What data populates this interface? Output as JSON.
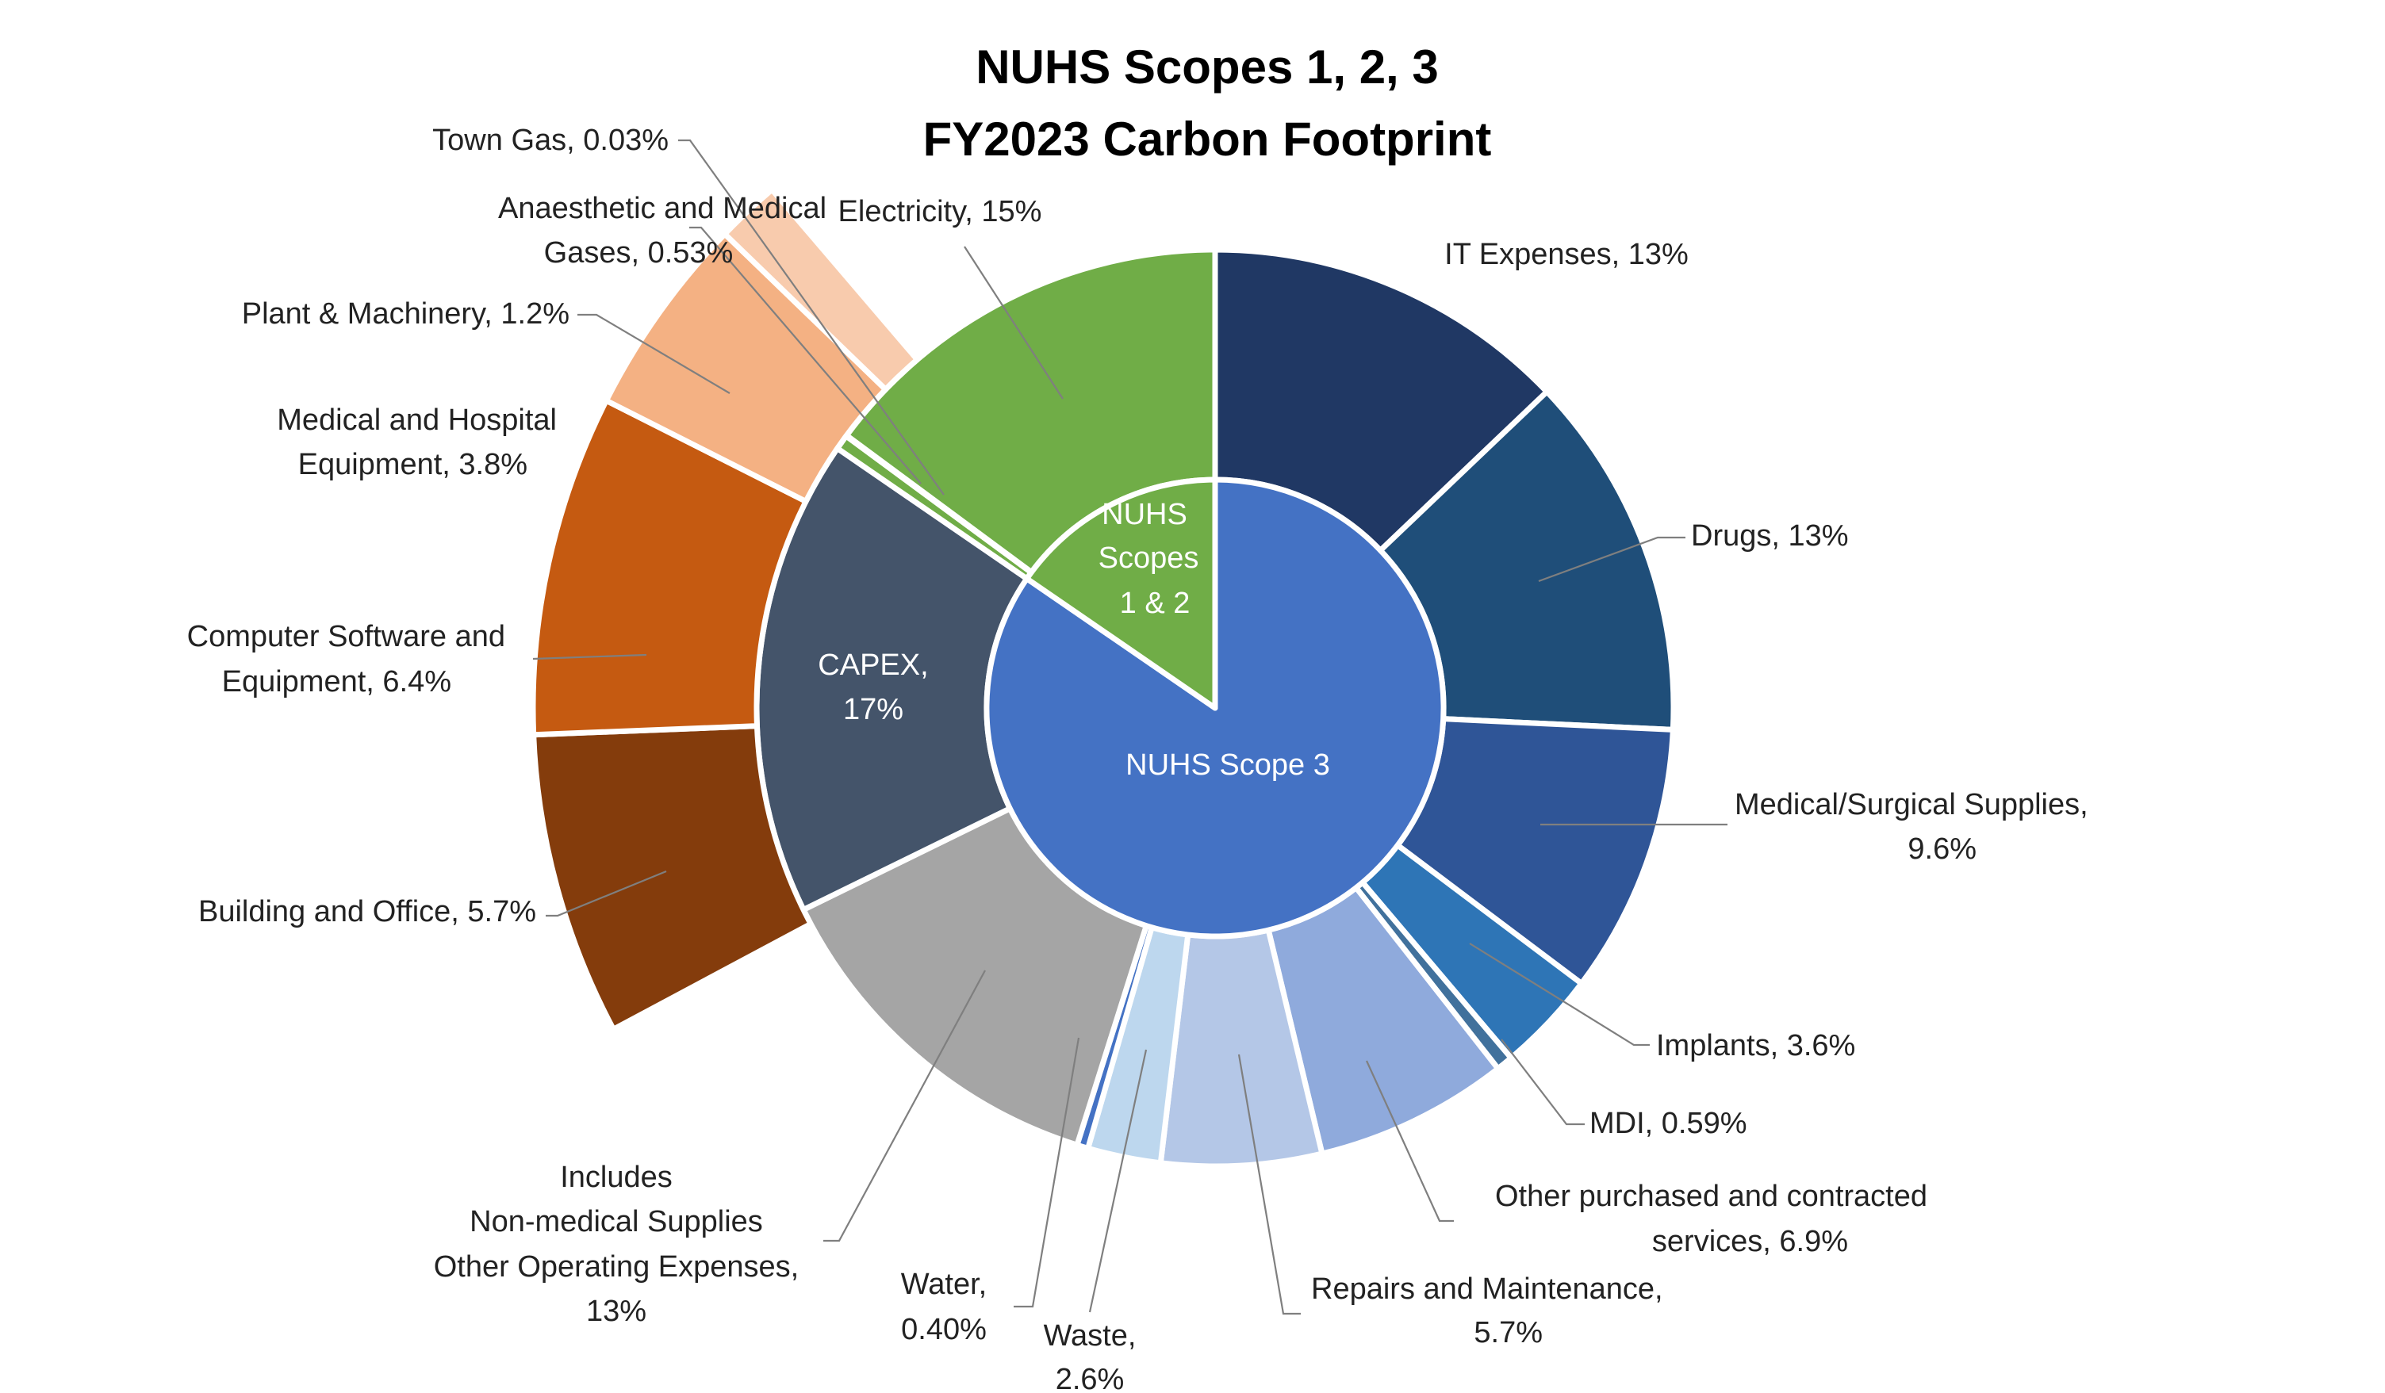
{
  "chart_data": {
    "type": "pie",
    "subtype": "sunburst",
    "title_lines": [
      "NUHS Scopes 1, 2, 3",
      "FY2023 Carbon Footprint"
    ],
    "inner_ring": [
      {
        "key": "s3",
        "label_lines": [
          "NUHS Scope 3"
        ],
        "value": 83.6,
        "color": "#4472C4"
      },
      {
        "key": "s12",
        "label_lines": [
          "NUHS",
          "Scopes",
          "1 & 2"
        ],
        "value": 15.03,
        "color": "#70AD47"
      }
    ],
    "outer_ring": [
      {
        "key": "it",
        "label_lines": [
          "IT Expenses, 13%"
        ],
        "value": 13,
        "color": "#203864"
      },
      {
        "key": "drugs",
        "label_lines": [
          "Drugs, 13%"
        ],
        "value": 13,
        "color": "#1F4E79"
      },
      {
        "key": "medsurg",
        "label_lines": [
          "Medical/Surgical Supplies,",
          "9.6%"
        ],
        "value": 9.6,
        "color": "#2F5597"
      },
      {
        "key": "implants",
        "label_lines": [
          "Implants, 3.6%"
        ],
        "value": 3.6,
        "color": "#2E75B6"
      },
      {
        "key": "mdi",
        "label_lines": [
          "MDI, 0.59%"
        ],
        "value": 0.59,
        "color": "#41719C"
      },
      {
        "key": "other_services",
        "label_lines": [
          "Other purchased and contracted",
          "services, 6.9%"
        ],
        "value": 6.9,
        "color": "#8FAADC"
      },
      {
        "key": "repairs",
        "label_lines": [
          "Repairs and Maintenance,",
          "5.7%"
        ],
        "value": 5.7,
        "color": "#B4C7E7"
      },
      {
        "key": "waste",
        "label_lines": [
          "Waste,",
          "2.6%"
        ],
        "value": 2.6,
        "color": "#BDD7EE"
      },
      {
        "key": "water",
        "label_lines": [
          "Water,",
          "0.40%"
        ],
        "value": 0.4,
        "color": "#4472C4"
      },
      {
        "key": "nonmed",
        "label_lines": [
          "Includes",
          "Non-medical Supplies",
          "Other Operating Expenses,",
          "13%"
        ],
        "value": 13,
        "color": "#A5A5A5"
      },
      {
        "key": "capex",
        "label_lines": [
          "CAPEX,",
          "17%"
        ],
        "value": 17,
        "color": "#44546A"
      },
      {
        "key": "anaesthetic",
        "label_lines": [
          "Anaesthetic and Medical",
          "Gases, 0.53%"
        ],
        "value": 0.53,
        "color": "#70AD47"
      },
      {
        "key": "towngas",
        "label_lines": [
          "Town Gas, 0.03%"
        ],
        "value": 0.03,
        "color": "#70AD47"
      },
      {
        "key": "electricity",
        "label_lines": [
          "Electricity, 15%"
        ],
        "value": 15,
        "color": "#70AD47"
      }
    ],
    "capex_breakdown": [
      {
        "key": "building",
        "label_lines": [
          "Building and Office, 5.7%"
        ],
        "value": 5.7,
        "color": "#843C0C"
      },
      {
        "key": "computer",
        "label_lines": [
          "Computer Software and",
          "Equipment, 6.4%"
        ],
        "value": 6.4,
        "color": "#C55A11"
      },
      {
        "key": "medequip",
        "label_lines": [
          "Medical and Hospital",
          "Equipment, 3.8%"
        ],
        "value": 3.8,
        "color": "#F4B183"
      },
      {
        "key": "plant",
        "label_lines": [
          "Plant & Machinery, 1.2%"
        ],
        "value": 1.2,
        "color": "#F8CBAD"
      }
    ]
  }
}
